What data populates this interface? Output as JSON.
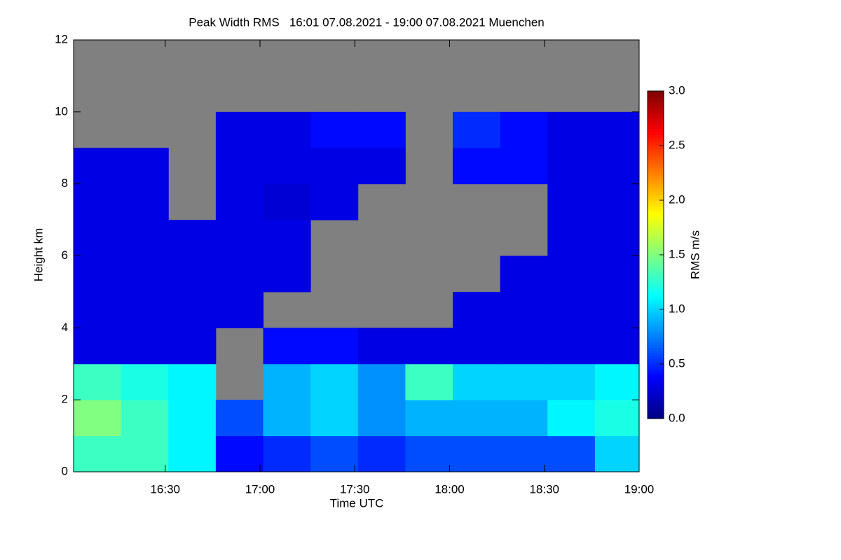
{
  "chart_data": {
    "type": "heatmap",
    "title": "Peak Width RMS   16:01 07.08.2021 - 19:00 07.08.2021 Muenchen",
    "x_label": "Time UTC",
    "y_label": "Height km",
    "colorbar_label": "RMS m/s",
    "colormap": "jet",
    "missing_color": "#808080",
    "xlim": [
      961,
      1140
    ],
    "xticks": [
      {
        "value": 990,
        "label": "16:30"
      },
      {
        "value": 1020,
        "label": "17:00"
      },
      {
        "value": 1050,
        "label": "17:30"
      },
      {
        "value": 1080,
        "label": "18:00"
      },
      {
        "value": 1110,
        "label": "18:30"
      },
      {
        "value": 1140,
        "label": "19:00"
      }
    ],
    "ylim": [
      0,
      12
    ],
    "yticks": [
      0,
      2,
      4,
      6,
      8,
      10,
      12
    ],
    "zlim": [
      0,
      3
    ],
    "zticks": [
      {
        "value": 0,
        "label": "0.0"
      },
      {
        "value": 0.5,
        "label": "0.5"
      },
      {
        "value": 1,
        "label": "1.0"
      },
      {
        "value": 1.5,
        "label": "1.5"
      },
      {
        "value": 2,
        "label": "2.0"
      },
      {
        "value": 2.5,
        "label": "2.5"
      },
      {
        "value": 3,
        "label": "3.0"
      }
    ],
    "xbins": [
      961,
      976,
      991,
      1006,
      1021,
      1036,
      1051,
      1066,
      1081,
      1096,
      1111,
      1126,
      1140
    ],
    "ybins": [
      0,
      1,
      2,
      3,
      4,
      5,
      6,
      7,
      8,
      9,
      10,
      11,
      12
    ],
    "z": [
      [
        1.3,
        1.3,
        1.1,
        0.4,
        0.5,
        0.6,
        0.5,
        0.6,
        0.6,
        0.6,
        0.6,
        1.0
      ],
      [
        1.5,
        1.3,
        1.1,
        0.6,
        0.9,
        1.0,
        0.8,
        0.9,
        0.9,
        0.9,
        1.1,
        1.2
      ],
      [
        1.3,
        1.2,
        1.1,
        null,
        0.9,
        1.0,
        0.8,
        1.3,
        1.0,
        1.0,
        1.0,
        1.1
      ],
      [
        0.3,
        0.3,
        0.3,
        null,
        0.4,
        0.4,
        0.3,
        0.3,
        0.3,
        0.3,
        0.3,
        0.3
      ],
      [
        0.3,
        0.3,
        0.3,
        0.3,
        null,
        null,
        null,
        null,
        0.3,
        0.3,
        0.3,
        0.3
      ],
      [
        0.3,
        0.3,
        0.3,
        0.3,
        0.3,
        null,
        null,
        null,
        null,
        0.3,
        0.3,
        0.3
      ],
      [
        0.3,
        0.3,
        0.3,
        0.3,
        0.3,
        null,
        null,
        null,
        null,
        null,
        0.3,
        0.3
      ],
      [
        0.3,
        0.3,
        null,
        0.3,
        0.25,
        0.3,
        null,
        null,
        null,
        null,
        0.3,
        0.3
      ],
      [
        0.3,
        0.3,
        null,
        0.3,
        0.3,
        0.3,
        0.3,
        null,
        0.4,
        0.4,
        0.3,
        0.3
      ],
      [
        null,
        null,
        null,
        0.3,
        0.3,
        0.4,
        0.4,
        null,
        0.5,
        0.4,
        0.3,
        0.3
      ],
      [
        null,
        null,
        null,
        null,
        null,
        null,
        null,
        null,
        null,
        null,
        null,
        null
      ],
      [
        null,
        null,
        null,
        null,
        null,
        null,
        null,
        null,
        null,
        null,
        null,
        null
      ]
    ]
  }
}
